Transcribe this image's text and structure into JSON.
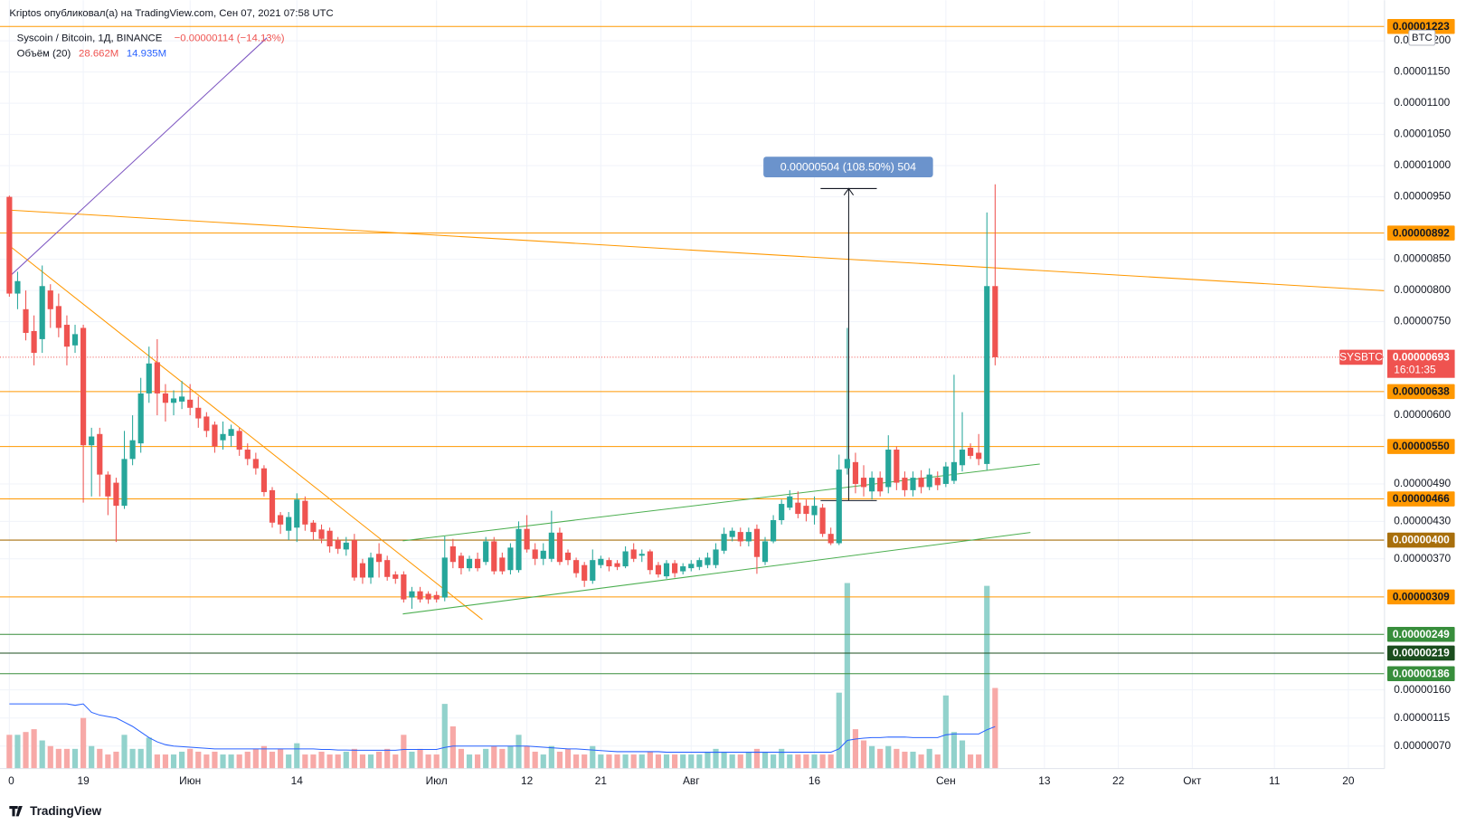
{
  "publisher_line": "Kriptos опубликовал(а) на TradingView.com, Сен 07, 2021 07:58 UTC",
  "logo_text": "TradingView",
  "chart_data": {
    "type": "candlestick",
    "title": "Syscoin / Bitcoin, 1Д, BINANCE",
    "change_label": "−0.00000114 (−14.13%)",
    "currency": "BTC",
    "up_color": "#26a69a",
    "down_color": "#ef5350",
    "volume_up_color": "#92d2cc",
    "volume_down_color": "#f7a9a7",
    "grid": true,
    "xlim": [
      0,
      167.4
    ],
    "xticks": [
      {
        "value": 0,
        "label": "0"
      },
      {
        "value": 9,
        "label": "19"
      },
      {
        "value": 22,
        "label": "Июн"
      },
      {
        "value": 35,
        "label": "14"
      },
      {
        "value": 52,
        "label": "Июл"
      },
      {
        "value": 63,
        "label": "12"
      },
      {
        "value": 72,
        "label": "21"
      },
      {
        "value": 83,
        "label": "Авг"
      },
      {
        "value": 98,
        "label": "16"
      },
      {
        "value": 114,
        "label": "Сен"
      },
      {
        "value": 126,
        "label": "13"
      },
      {
        "value": 135,
        "label": "22"
      },
      {
        "value": 144,
        "label": "Окт"
      },
      {
        "value": 154,
        "label": "11"
      },
      {
        "value": 163,
        "label": "20"
      }
    ],
    "ylim": [
      3.4e-07,
      1.25e-05
    ],
    "yticks": [
      {
        "value": 1.2e-05,
        "label": "0.00001200"
      },
      {
        "value": 1.15e-05,
        "label": "0.00001150"
      },
      {
        "value": 1.1e-05,
        "label": "0.00001100"
      },
      {
        "value": 1.05e-05,
        "label": "0.00001050"
      },
      {
        "value": 1e-05,
        "label": "0.00001000"
      },
      {
        "value": 9.5e-06,
        "label": "0.00000950"
      },
      {
        "value": 8.5e-06,
        "label": "0.00000850"
      },
      {
        "value": 8e-06,
        "label": "0.00000800"
      },
      {
        "value": 7.5e-06,
        "label": "0.00000750"
      },
      {
        "value": 6e-06,
        "label": "0.00000600"
      },
      {
        "value": 4.9e-06,
        "label": "0.00000490"
      },
      {
        "value": 4.3e-06,
        "label": "0.00000430"
      },
      {
        "value": 3.7e-06,
        "label": "0.00000370"
      },
      {
        "value": 1.6e-06,
        "label": "0.00000160"
      },
      {
        "value": 1.15e-06,
        "label": "0.00000115"
      },
      {
        "value": 7e-07,
        "label": "0.00000070"
      }
    ],
    "open": [
      9.5e-06,
      7.95e-06,
      7.7e-06,
      7.35e-06,
      7.22e-06,
      8e-06,
      7.75e-06,
      7.45e-06,
      7.12e-06,
      7.4e-06,
      5.52e-06,
      5.7e-06,
      5.05e-06,
      4.92e-06,
      4.55e-06,
      5.3e-06,
      5.55e-06,
      6.35e-06,
      6.85e-06,
      6.35e-06,
      6.2e-06,
      6.22e-06,
      6.25e-06,
      6.12e-06,
      5.98e-06,
      5.85e-06,
      5.6e-06,
      5.67e-06,
      5.75e-06,
      5.45e-06,
      5.3e-06,
      5.15e-06,
      4.8e-06,
      4.4e-06,
      4.15e-06,
      4.2e-06,
      4.63e-06,
      4.28e-06,
      4.17e-06,
      4.15e-06,
      4e-06,
      3.85e-06,
      4e-06,
      3.63e-06,
      3.4e-06,
      3.78e-06,
      3.68e-06,
      3.45e-06,
      3.45e-06,
      3.08e-06,
      3.18e-06,
      3.14e-06,
      3.12e-06,
      3.08e-06,
      3.9e-06,
      3.75e-06,
      3.55e-06,
      3.7e-06,
      3.65e-06,
      3.98e-06,
      3.72e-06,
      3.52e-06,
      3.52e-06,
      4.18e-06,
      3.85e-06,
      3.7e-06,
      3.7e-06,
      4.12e-06,
      3.8e-06,
      3.68e-06,
      3.6e-06,
      3.35e-06,
      3.6e-06,
      3.68e-06,
      3.63e-06,
      3.58e-06,
      3.85e-06,
      3.75e-06,
      3.82e-06,
      3.6e-06,
      3.42e-06,
      3.63e-06,
      3.5e-06,
      3.55e-06,
      3.57e-06,
      3.6e-06,
      3.6e-06,
      3.83e-06,
      4.05e-06,
      4.13e-06,
      3.98e-06,
      4.18e-06,
      3.65e-06,
      3.98e-06,
      4.32e-06,
      4.52e-06,
      4.6e-06,
      4.55e-06,
      4.4e-06,
      4.52e-06,
      4.1e-06,
      3.95e-06,
      5.15e-06,
      5.25e-06,
      5e-06,
      4.78e-06,
      5e-06,
      4.85e-06,
      5.45e-06,
      5e-06,
      4.8e-06,
      5e-06,
      4.85e-06,
      5e-06,
      4.9e-06,
      4.95e-06,
      5.2e-06,
      5.48e-06,
      5.4e-06,
      5.22e-06,
      8.07e-06
    ],
    "high": [
      9.52e-06,
      8.3e-06,
      8e-06,
      7.6e-06,
      8.4e-06,
      8.1e-06,
      7.95e-06,
      7.6e-06,
      7.45e-06,
      7.45e-06,
      5.8e-06,
      5.8e-06,
      5.1e-06,
      5e-06,
      5.75e-06,
      6e-06,
      6.6e-06,
      7.1e-06,
      7.22e-06,
      6.5e-06,
      6.4e-06,
      6.55e-06,
      6.5e-06,
      6.3e-06,
      6.05e-06,
      5.9e-06,
      5.9e-06,
      5.85e-06,
      5.8e-06,
      5.55e-06,
      5.4e-06,
      5.2e-06,
      4.85e-06,
      4.45e-06,
      4.45e-06,
      4.75e-06,
      4.7e-06,
      4.32e-06,
      4.25e-06,
      4.2e-06,
      4.05e-06,
      4.05e-06,
      4.1e-06,
      3.7e-06,
      3.8e-06,
      3.95e-06,
      3.75e-06,
      3.5e-06,
      3.5e-06,
      3.25e-06,
      3.25e-06,
      3.18e-06,
      3.18e-06,
      4.06e-06,
      4.02e-06,
      3.8e-06,
      3.75e-06,
      3.8e-06,
      4.05e-06,
      4.05e-06,
      3.8e-06,
      3.95e-06,
      4.3e-06,
      4.4e-06,
      3.95e-06,
      3.95e-06,
      4.47e-06,
      4.2e-06,
      3.85e-06,
      3.72e-06,
      3.65e-06,
      3.85e-06,
      3.75e-06,
      3.72e-06,
      3.68e-06,
      3.9e-06,
      3.95e-06,
      3.85e-06,
      3.85e-06,
      3.65e-06,
      3.68e-06,
      3.68e-06,
      3.63e-06,
      3.68e-06,
      3.72e-06,
      3.8e-06,
      3.95e-06,
      4.2e-06,
      4.2e-06,
      4.2e-06,
      4.2e-06,
      4.25e-06,
      4.05e-06,
      4.4e-06,
      4.65e-06,
      4.8e-06,
      4.78e-06,
      4.65e-06,
      4.7e-06,
      4.58e-06,
      4.2e-06,
      5.37e-06,
      7.4e-06,
      5.4e-06,
      5.2e-06,
      5.1e-06,
      5.1e-06,
      5.68e-06,
      5.5e-06,
      5.1e-06,
      5.1e-06,
      5.12e-06,
      5.15e-06,
      5.1e-06,
      5.25e-06,
      6.65e-06,
      6.05e-06,
      5.55e-06,
      5.7e-06,
      9.25e-06,
      9.7e-06
    ],
    "low": [
      7.9e-06,
      7.7e-06,
      7.2e-06,
      6.8e-06,
      7e-06,
      7.4e-06,
      7.25e-06,
      6.8e-06,
      7e-06,
      4.6e-06,
      4.7e-06,
      4.7e-06,
      4.4e-06,
      3.97e-06,
      4.5e-06,
      5.2e-06,
      5.4e-06,
      6.2e-06,
      6e-06,
      5.9e-06,
      6e-06,
      6.1e-06,
      6e-06,
      5.8e-06,
      5.65e-06,
      5.4e-06,
      5.45e-06,
      5.5e-06,
      5.35e-06,
      5.2e-06,
      5.05e-06,
      4.7e-06,
      4.2e-06,
      4.1e-06,
      4e-06,
      3.97e-06,
      4.15e-06,
      4e-06,
      3.95e-06,
      3.8e-06,
      3.78e-06,
      3.75e-06,
      3.35e-06,
      3.3e-06,
      3.3e-06,
      3.4e-06,
      3.35e-06,
      3.3e-06,
      3e-06,
      2.9e-06,
      3e-06,
      2.98e-06,
      3e-06,
      3.02e-06,
      3.55e-06,
      3.45e-06,
      3.5e-06,
      3.5e-06,
      3.6e-06,
      3.45e-06,
      3.45e-06,
      3.45e-06,
      3.48e-06,
      3.8e-06,
      3.6e-06,
      3.6e-06,
      3.65e-06,
      3.6e-06,
      3.6e-06,
      3.4e-06,
      3.25e-06,
      3.3e-06,
      3.55e-06,
      3.5e-06,
      3.52e-06,
      3.55e-06,
      3.65e-06,
      3.65e-06,
      3.45e-06,
      3.4e-06,
      3.38e-06,
      3.4e-06,
      3.45e-06,
      3.5e-06,
      3.52e-06,
      3.55e-06,
      3.55e-06,
      3.78e-06,
      3.98e-06,
      3.9e-06,
      3.9e-06,
      3.46e-06,
      3.6e-06,
      3.95e-06,
      4.25e-06,
      4.48e-06,
      4.35e-06,
      4.3e-06,
      4.25e-06,
      4.05e-06,
      3.92e-06,
      3.92e-06,
      5.05e-06,
      4.75e-06,
      4.7e-06,
      4.65e-06,
      4.7e-06,
      4.75e-06,
      4.8e-06,
      4.7e-06,
      4.7e-06,
      4.75e-06,
      4.8e-06,
      4.8e-06,
      4.85e-06,
      4.9e-06,
      5.1e-06,
      5.3e-06,
      5.2e-06,
      5.12e-06,
      6.8e-06
    ],
    "close": [
      7.95e-06,
      8.15e-06,
      7.32e-06,
      7e-06,
      8.07e-06,
      7.7e-06,
      7.4e-06,
      7.1e-06,
      7.3e-06,
      5.52e-06,
      5.66e-06,
      5.05e-06,
      4.7e-06,
      4.55e-06,
      5.3e-06,
      5.6e-06,
      6.35e-06,
      6.83e-06,
      6.35e-06,
      6.2e-06,
      6.27e-06,
      6.3e-06,
      6.12e-06,
      5.95e-06,
      5.75e-06,
      5.5e-06,
      5.7e-06,
      5.78e-06,
      5.45e-06,
      5.3e-06,
      5.15e-06,
      4.77e-06,
      4.28e-06,
      4.25e-06,
      4.37e-06,
      4.65e-06,
      4.25e-06,
      4.13e-06,
      4.02e-06,
      3.9e-06,
      3.86e-06,
      3.96e-06,
      3.4e-06,
      3.4e-06,
      3.72e-06,
      3.65e-06,
      3.41e-06,
      3.38e-06,
      3.05e-06,
      3.18e-06,
      3.05e-06,
      3.05e-06,
      3.05e-06,
      3.72e-06,
      3.65e-06,
      3.55e-06,
      3.7e-06,
      3.55e-06,
      3.98e-06,
      3.5e-06,
      3.5e-06,
      3.88e-06,
      4.18e-06,
      3.85e-06,
      3.7e-06,
      3.83e-06,
      4.12e-06,
      3.65e-06,
      3.68e-06,
      3.47e-06,
      3.35e-06,
      3.68e-06,
      3.7e-06,
      3.58e-06,
      3.57e-06,
      3.82e-06,
      3.7e-06,
      3.78e-06,
      3.52e-06,
      3.45e-06,
      3.63e-06,
      3.47e-06,
      3.58e-06,
      3.62e-06,
      3.68e-06,
      3.72e-06,
      3.85e-06,
      4.1e-06,
      4.15e-06,
      3.98e-06,
      4.13e-06,
      3.73e-06,
      3.98e-06,
      4.32e-06,
      4.58e-06,
      4.7e-06,
      4.42e-06,
      4.42e-06,
      4.55e-06,
      4.1e-06,
      3.95e-06,
      5.13e-06,
      5.3e-06,
      4.9e-06,
      4.85e-06,
      5e-06,
      4.78e-06,
      5.45e-06,
      4.92e-06,
      4.8e-06,
      5e-06,
      4.85e-06,
      5.05e-06,
      4.88e-06,
      5.18e-06,
      5.25e-06,
      5.45e-06,
      5.35e-06,
      5.3e-06,
      8.07e-06,
      6.93e-06
    ],
    "volume": {
      "name": "Объём (20)",
      "value_label": "28.662M",
      "ylim": [
        0,
        270
      ],
      "values": [
        12,
        12,
        13,
        14,
        10,
        8,
        7,
        7,
        7,
        18,
        8,
        7,
        5,
        6,
        12,
        7,
        7,
        11,
        5,
        5,
        5,
        6,
        7,
        6,
        5,
        6,
        5,
        5,
        5,
        6,
        7,
        8,
        6,
        7,
        5,
        9,
        5,
        5,
        6,
        5,
        5,
        6,
        7,
        5,
        5,
        6,
        7,
        5,
        12,
        6,
        7,
        5,
        5,
        23,
        15,
        7,
        5,
        5,
        7,
        8,
        7,
        8,
        12,
        8,
        6,
        5,
        8,
        6,
        7,
        5,
        5,
        8,
        5,
        5,
        5,
        5,
        5,
        5,
        6,
        5,
        5,
        5,
        5,
        5,
        5,
        6,
        7,
        6,
        5,
        5,
        6,
        7,
        6,
        5,
        7,
        5,
        5,
        5,
        5,
        5,
        5,
        27,
        66,
        14,
        10,
        8,
        7,
        8,
        7,
        6,
        6,
        5,
        7,
        5,
        26,
        13,
        10,
        5,
        5,
        65,
        28.662
      ],
      "ma": {
        "color": "#2962ff",
        "value_label": "14.935M",
        "values": [
          23,
          23,
          23,
          23,
          23,
          23,
          23,
          23,
          22.5,
          23,
          20,
          19,
          18.5,
          18,
          16.5,
          15,
          13,
          11,
          9.5,
          8.5,
          8,
          7.8,
          7.6,
          7.4,
          7.2,
          7,
          7,
          7,
          7,
          7,
          7,
          7,
          7,
          7,
          7,
          7,
          7,
          7,
          6.8,
          6.8,
          6.6,
          6.6,
          6.5,
          6.5,
          6.5,
          6.5,
          6.5,
          6.5,
          6.8,
          6.8,
          6.8,
          6.8,
          6.8,
          7.5,
          8,
          8,
          8,
          8,
          8,
          8,
          8,
          8,
          8,
          8,
          7.8,
          7.6,
          7.4,
          7.2,
          7,
          7,
          6.8,
          6.6,
          6.4,
          6.2,
          6,
          6,
          6,
          6,
          6,
          6,
          5.8,
          5.8,
          5.8,
          5.8,
          5.8,
          5.8,
          5.8,
          5.8,
          5.8,
          5.8,
          5.8,
          5.8,
          5.8,
          5.8,
          5.8,
          5.8,
          5.8,
          5.8,
          5.8,
          5.8,
          5.8,
          7,
          10,
          10.5,
          10.8,
          11,
          11,
          11.2,
          11.2,
          11.2,
          11,
          11,
          11,
          11,
          12,
          12.3,
          12.3,
          12.3,
          12.3,
          13.8,
          14.935
        ]
      }
    },
    "levels": [
      {
        "value": 1.223e-05,
        "label": "0.00001223",
        "color": "#ff9800",
        "text_color": "#131722"
      },
      {
        "value": 8.92e-06,
        "label": "0.00000892",
        "color": "#ff9800",
        "text_color": "#131722"
      },
      {
        "value": 6.38e-06,
        "label": "0.00000638",
        "color": "#ff9800",
        "text_color": "#131722"
      },
      {
        "value": 5.5e-06,
        "label": "0.00000550",
        "color": "#ff9800",
        "text_color": "#131722"
      },
      {
        "value": 4.66e-06,
        "label": "0.00000466",
        "color": "#ff9800",
        "text_color": "#131722"
      },
      {
        "value": 4e-06,
        "label": "0.00000400",
        "color": "#a86f0c",
        "text_color": "#ffffff"
      },
      {
        "value": 3.09e-06,
        "label": "0.00000309",
        "color": "#ff9800",
        "text_color": "#131722"
      },
      {
        "value": 2.49e-06,
        "label": "0.00000249",
        "color": "#388e3c",
        "text_color": "#ffffff"
      },
      {
        "value": 2.19e-06,
        "label": "0.00000219",
        "color": "#1b4d1e",
        "text_color": "#ffffff"
      },
      {
        "value": 1.86e-06,
        "label": "0.00000186",
        "color": "#388e3c",
        "text_color": "#ffffff"
      }
    ],
    "last_price": {
      "value": 6.93e-06,
      "label": "0.00000693",
      "countdown": "16:01:35",
      "symbol": "SYSBTC",
      "color": "#ef5350"
    },
    "measure_label": "0.00000504 (108.50%) 504"
  }
}
